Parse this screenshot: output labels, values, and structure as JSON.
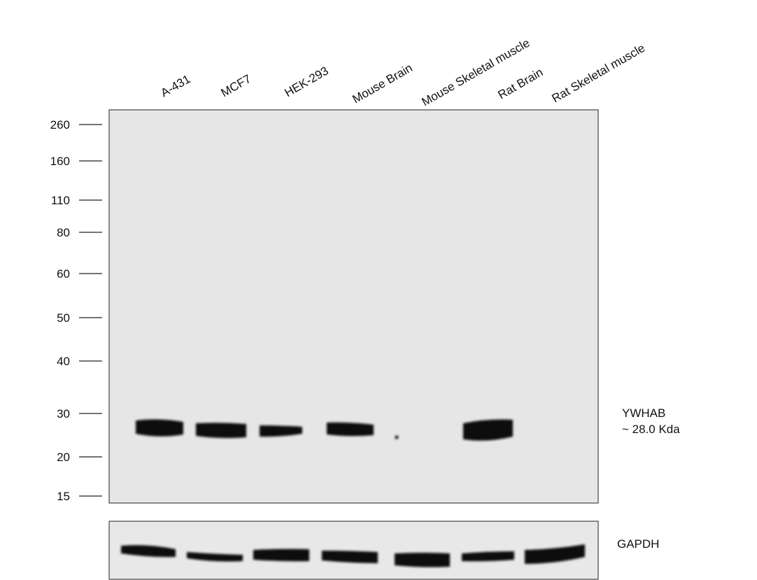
{
  "lanes": [
    "A-431",
    "MCF7",
    "HEK-293",
    "Mouse Brain",
    "Mouse Skeletal muscle",
    "Rat Brain",
    "Rat Skeletal muscle"
  ],
  "markers": [
    "260",
    "160",
    "110",
    "80",
    "60",
    "50",
    "40",
    "30",
    "20",
    "15"
  ],
  "target": {
    "name": "YWHAB",
    "size": "~ 28.0 Kda"
  },
  "loading_control": "GAPDH"
}
